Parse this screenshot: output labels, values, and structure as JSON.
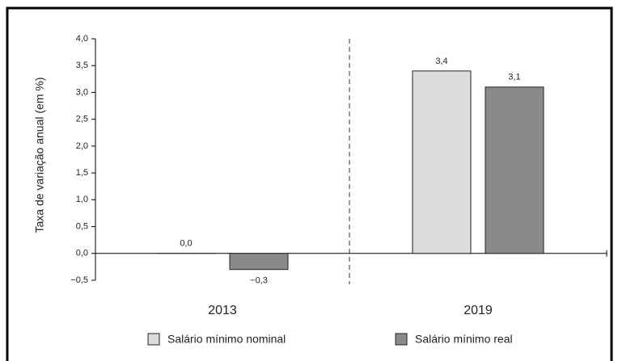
{
  "chart_data": {
    "type": "bar",
    "ylabel": "Taxa de variação anual (em %)",
    "categories": [
      "2013",
      "2019"
    ],
    "series": [
      {
        "name": "Salário mínimo nominal",
        "color": "#dcdcdc",
        "values": [
          0.0,
          3.4
        ],
        "value_labels": [
          "0,0",
          "3,4"
        ]
      },
      {
        "name": "Salário mínimo real",
        "color": "#8a8a8c",
        "values": [
          -0.3,
          3.1
        ],
        "value_labels": [
          "−0,3",
          "3,1"
        ]
      }
    ],
    "ylim": [
      -0.5,
      4.0
    ],
    "yticks": [
      {
        "value": -0.5,
        "label": "−0,5"
      },
      {
        "value": 0,
        "label": "0,0"
      },
      {
        "value": 0.5,
        "label": "0,5"
      },
      {
        "value": 1,
        "label": "1,0"
      },
      {
        "value": 1.5,
        "label": "1,5"
      },
      {
        "value": 2,
        "label": "2,0"
      },
      {
        "value": 2.5,
        "label": "2,5"
      },
      {
        "value": 3,
        "label": "3,0"
      },
      {
        "value": 3.5,
        "label": "3,5"
      },
      {
        "value": 4,
        "label": "4,0"
      }
    ],
    "grid": false
  }
}
